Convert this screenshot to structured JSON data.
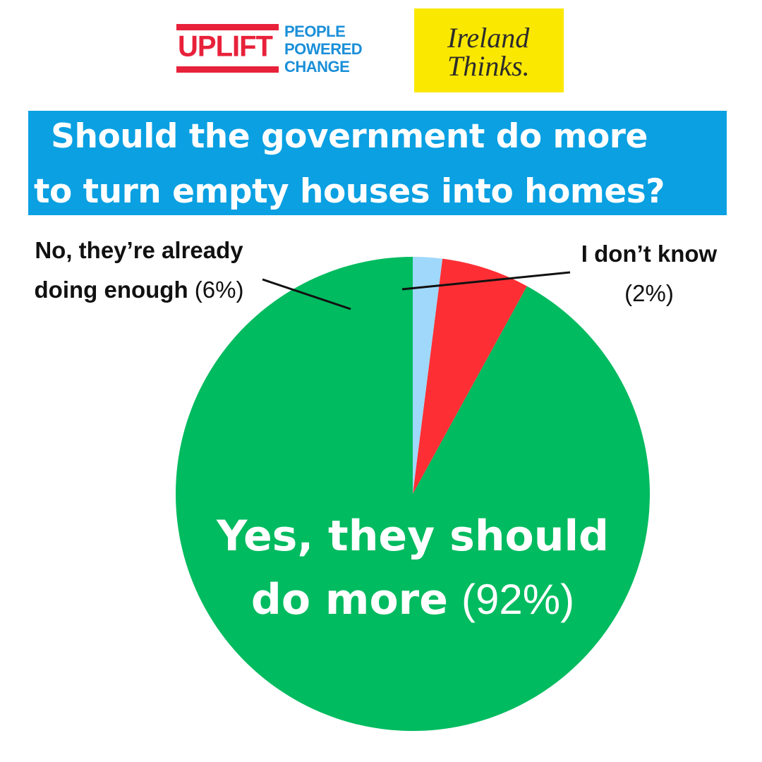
{
  "logos": {
    "uplift": {
      "word": "UPLIFT",
      "tagline": [
        "PEOPLE",
        "POWERED",
        "CHANGE"
      ],
      "color": "#e8213a",
      "tagline_color": "#1a8fd8"
    },
    "ireland_thinks": {
      "lines": [
        "Ireland",
        "Thinks."
      ],
      "background": "#fbe800"
    }
  },
  "title": {
    "line1": "Should the government do more",
    "line2": "to turn empty houses into homes?",
    "background": "#0aa0e2"
  },
  "chart_data": {
    "type": "pie",
    "title": "Should the government do more to turn empty houses into homes?",
    "start": "12 o'clock",
    "direction": "counter-clockwise",
    "legend": "none",
    "slices": [
      {
        "label_lines": [
          "Yes, they should",
          "do more"
        ],
        "value": 92,
        "value_text": "(92%)",
        "color": "#00bb5f",
        "label_color": "#ffffff"
      },
      {
        "label_lines": [
          "No, they’re already",
          "doing enough"
        ],
        "value": 6,
        "value_text": "(6%)",
        "color": "#fd2f34",
        "label_color": "#111111"
      },
      {
        "label_lines": [
          "I don’t know"
        ],
        "value": 2,
        "value_text": "(2%)",
        "color": "#9fd8fb",
        "label_color": "#111111"
      }
    ]
  }
}
